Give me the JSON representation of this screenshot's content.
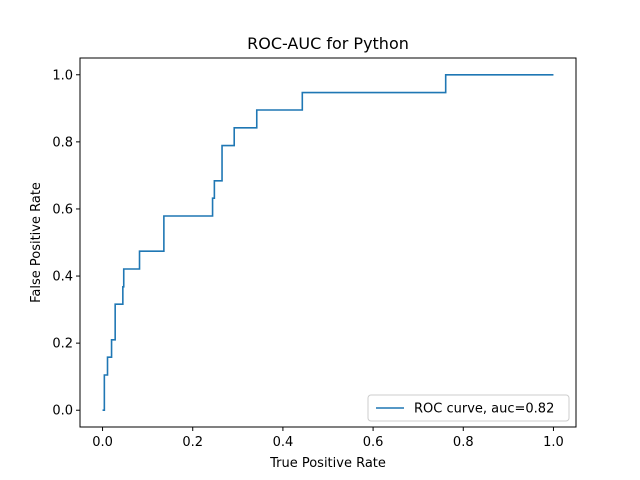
{
  "chart_data": {
    "type": "line",
    "title": "ROC-AUC for Python",
    "xlabel": "True Positive Rate",
    "ylabel": "False Positive Rate",
    "xlim": [
      -0.05,
      1.05
    ],
    "ylim": [
      -0.05,
      1.05
    ],
    "xticks": [
      0.0,
      0.2,
      0.4,
      0.6,
      0.8,
      1.0
    ],
    "yticks": [
      0.0,
      0.2,
      0.4,
      0.6,
      0.8,
      1.0
    ],
    "xtick_labels": [
      "0.0",
      "0.2",
      "0.4",
      "0.6",
      "0.8",
      "1.0"
    ],
    "ytick_labels": [
      "0.0",
      "0.2",
      "0.4",
      "0.6",
      "0.8",
      "1.0"
    ],
    "grid": false,
    "legend_position": "lower-right",
    "series": [
      {
        "name": "ROC curve, auc=0.82",
        "color": "#1f77b4",
        "step": true,
        "x": [
          0.0,
          0.004,
          0.011,
          0.02,
          0.028,
          0.045,
          0.047,
          0.082,
          0.136,
          0.244,
          0.248,
          0.265,
          0.292,
          0.342,
          0.443,
          0.761,
          1.0
        ],
        "y": [
          0.0,
          0.105,
          0.158,
          0.21,
          0.316,
          0.368,
          0.421,
          0.474,
          0.579,
          0.632,
          0.684,
          0.789,
          0.842,
          0.895,
          0.947,
          1.0,
          1.0
        ]
      }
    ]
  }
}
